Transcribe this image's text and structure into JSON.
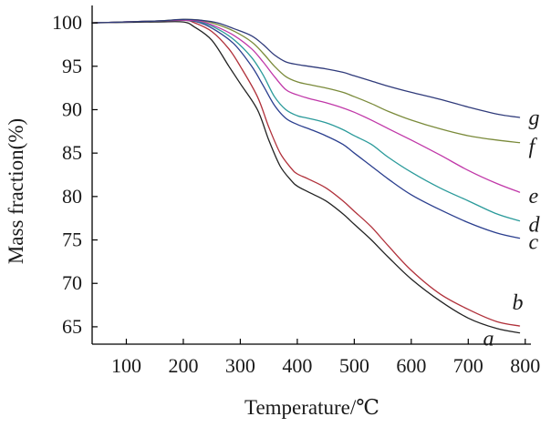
{
  "chart_data": {
    "type": "line",
    "title": "",
    "xlabel": "Temperature/℃",
    "ylabel": "Mass fraction(%)",
    "xlim": [
      40,
      810
    ],
    "ylim": [
      63,
      102
    ],
    "x_ticks": [
      100,
      200,
      300,
      400,
      500,
      600,
      700,
      800
    ],
    "y_ticks": [
      65,
      70,
      75,
      80,
      85,
      90,
      95,
      100
    ],
    "grid": false,
    "series": [
      {
        "name": "a",
        "color": "#222222",
        "x": [
          40,
          150,
          200,
          220,
          250,
          280,
          300,
          330,
          350,
          370,
          390,
          400,
          420,
          450,
          480,
          500,
          530,
          560,
          600,
          650,
          700,
          750,
          790
        ],
        "values": [
          100,
          100.1,
          100.1,
          99.5,
          98.0,
          95.0,
          93.0,
          90.0,
          86.5,
          83.5,
          81.8,
          81.2,
          80.5,
          79.5,
          78.0,
          76.8,
          75.0,
          73.0,
          70.5,
          68.0,
          66.0,
          64.8,
          64.3
        ]
      },
      {
        "name": "b",
        "color": "#b0303a",
        "x": [
          40,
          150,
          200,
          220,
          250,
          280,
          300,
          330,
          350,
          370,
          390,
          400,
          420,
          450,
          480,
          500,
          530,
          560,
          600,
          650,
          700,
          750,
          790
        ],
        "values": [
          100,
          100.2,
          100.3,
          100.0,
          99.0,
          97.0,
          95.0,
          91.5,
          88.0,
          85.0,
          83.2,
          82.6,
          82.0,
          81.0,
          79.5,
          78.3,
          76.5,
          74.3,
          71.5,
          68.8,
          67.0,
          65.6,
          65.1
        ]
      },
      {
        "name": "c",
        "color": "#2a3e8e",
        "x": [
          40,
          150,
          200,
          230,
          260,
          290,
          320,
          340,
          360,
          380,
          400,
          420,
          450,
          480,
          500,
          530,
          560,
          600,
          650,
          700,
          750,
          790
        ],
        "values": [
          100,
          100.2,
          100.3,
          100.0,
          99.0,
          97.5,
          95.0,
          92.8,
          90.5,
          89.0,
          88.3,
          87.8,
          87.0,
          86.0,
          85.0,
          83.5,
          82.0,
          80.2,
          78.5,
          77.0,
          75.8,
          75.2
        ]
      },
      {
        "name": "d",
        "color": "#2a9a9a",
        "x": [
          40,
          150,
          200,
          230,
          260,
          290,
          320,
          340,
          360,
          380,
          400,
          420,
          450,
          480,
          500,
          530,
          560,
          600,
          650,
          700,
          750,
          790
        ],
        "values": [
          100,
          100.2,
          100.3,
          100.1,
          99.3,
          98.0,
          96.0,
          94.0,
          91.5,
          90.0,
          89.3,
          89.0,
          88.5,
          87.7,
          87.0,
          86.0,
          84.5,
          82.8,
          81.0,
          79.5,
          78.0,
          77.2
        ]
      },
      {
        "name": "e",
        "color": "#c037a8",
        "x": [
          40,
          150,
          200,
          230,
          260,
          290,
          320,
          340,
          360,
          380,
          400,
          420,
          450,
          480,
          500,
          530,
          560,
          600,
          650,
          700,
          750,
          790
        ],
        "values": [
          100,
          100.2,
          100.3,
          100.2,
          99.5,
          98.5,
          97.0,
          95.5,
          93.8,
          92.3,
          91.7,
          91.3,
          90.8,
          90.2,
          89.7,
          88.8,
          87.8,
          86.5,
          84.8,
          83.0,
          81.5,
          80.5
        ]
      },
      {
        "name": "f",
        "color": "#7a8a3a",
        "x": [
          40,
          150,
          200,
          230,
          260,
          290,
          320,
          340,
          360,
          380,
          400,
          420,
          450,
          480,
          500,
          530,
          560,
          600,
          650,
          700,
          750,
          790
        ],
        "values": [
          100,
          100.2,
          100.4,
          100.3,
          99.8,
          99.0,
          97.8,
          96.5,
          95.0,
          93.8,
          93.2,
          92.9,
          92.5,
          92.0,
          91.5,
          90.7,
          89.8,
          88.8,
          87.8,
          87.0,
          86.5,
          86.2
        ]
      },
      {
        "name": "g",
        "color": "#2f3a7a",
        "x": [
          40,
          150,
          200,
          230,
          260,
          290,
          320,
          340,
          360,
          380,
          400,
          420,
          450,
          480,
          500,
          530,
          560,
          600,
          650,
          700,
          750,
          790
        ],
        "values": [
          100,
          100.2,
          100.4,
          100.3,
          100.0,
          99.3,
          98.5,
          97.5,
          96.3,
          95.5,
          95.2,
          95.0,
          94.7,
          94.3,
          93.9,
          93.3,
          92.7,
          92.0,
          91.2,
          90.3,
          89.5,
          89.1
        ]
      }
    ]
  }
}
